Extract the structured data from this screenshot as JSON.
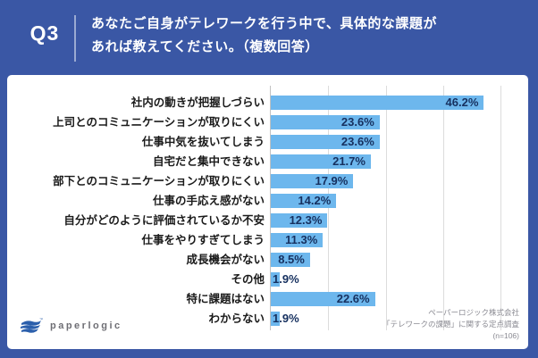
{
  "header": {
    "question_no": "Q3",
    "title_line1": "あなたご自身がテレワークを行う中で、具体的な課題が",
    "title_line2": "あれば教えてください。（複数回答）",
    "bg_color": "#3a57a5",
    "text_color": "#ffffff"
  },
  "chart_data": {
    "type": "bar",
    "orientation": "horizontal",
    "title": "",
    "xlabel": "",
    "ylabel": "",
    "xlim": [
      0,
      50
    ],
    "gridlines_pct": [
      12.5,
      25,
      37.5,
      50
    ],
    "grid": true,
    "bar_color": "#6db7ed",
    "value_label_color": "#16305f",
    "category_label_color": "#1a1a1a",
    "categories": [
      "社内の動きが把握しづらい",
      "上司とのコミュニケーションが取りにくい",
      "仕事中気を抜いてしまう",
      "自宅だと集中できない",
      "部下とのコミュニケーションが取りにくい",
      "仕事の手応え感がない",
      "自分がどのように評価されているか不安",
      "仕事をやりすぎてしまう",
      "成長機会がない",
      "その他",
      "特に課題はない",
      "わからない"
    ],
    "values": [
      46.2,
      23.6,
      23.6,
      21.7,
      17.9,
      14.2,
      12.3,
      11.3,
      8.5,
      1.9,
      22.6,
      1.9
    ],
    "value_labels": [
      "46.2%",
      "23.6%",
      "23.6%",
      "21.7%",
      "17.9%",
      "14.2%",
      "12.3%",
      "11.3%",
      "8.5%",
      "1.9%",
      "22.6%",
      "1.9%"
    ]
  },
  "footer": {
    "logo_text": "paperlogic",
    "source_line1": "ペーパーロジック株式会社",
    "source_line2": "「テレワークの課題」に関する定点調査",
    "source_line3": "(n=106)"
  }
}
